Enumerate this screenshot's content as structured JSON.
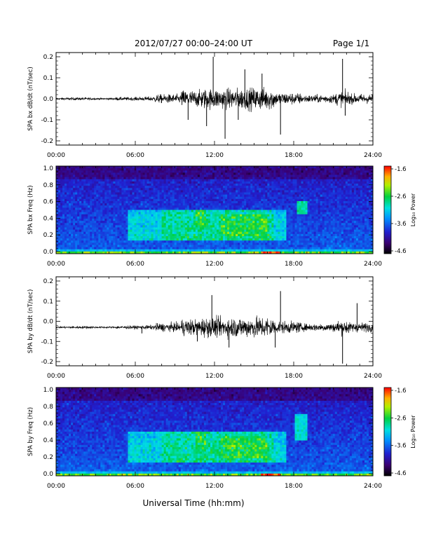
{
  "header": {
    "title": "2012/07/27  00:00–24:00 UT",
    "page": "Page 1/1"
  },
  "footer": {
    "xlabel": "Universal Time (hh:mm)"
  },
  "colorbar": {
    "label": "Log₁₀ Power",
    "ticks": [
      "-1.6",
      "-2.6",
      "-3.6",
      "-4.6"
    ]
  },
  "colors": {
    "trace": "#000000",
    "background": "#ffffff"
  },
  "chart_data": [
    {
      "type": "line",
      "ylabel": "SPA bx dB/dt (nT/sec)",
      "x_ticks": [
        "00:00",
        "06:00",
        "12:00",
        "18:00",
        "24:00"
      ],
      "y_ticks": [
        "0.2",
        "0.1",
        "0.0",
        "-0.1",
        "-0.2"
      ],
      "xlim": [
        0,
        24
      ],
      "ylim": [
        -0.2,
        0.2
      ],
      "spikes": [
        {
          "x": 11.9,
          "y": 0.2
        },
        {
          "x": 12.8,
          "y": -0.19
        },
        {
          "x": 11.4,
          "y": -0.13
        },
        {
          "x": 15.6,
          "y": 0.12
        },
        {
          "x": 17.0,
          "y": -0.17
        },
        {
          "x": 21.7,
          "y": 0.19
        },
        {
          "x": 21.9,
          "y": -0.08
        },
        {
          "x": 14.3,
          "y": 0.14
        },
        {
          "x": 10.0,
          "y": -0.1
        },
        {
          "x": 13.8,
          "y": -0.1
        }
      ]
    },
    {
      "type": "heatmap",
      "ylabel": "SPA bx Freq (Hz)",
      "x_ticks": [
        "00:00",
        "06:00",
        "12:00",
        "18:00",
        "24:00"
      ],
      "y_ticks": [
        "1.0",
        "0.8",
        "0.6",
        "0.4",
        "0.2",
        "0.0"
      ],
      "xlim": [
        0,
        24
      ],
      "ylim": [
        0,
        1
      ],
      "zlim": [
        -4.6,
        -1.6
      ],
      "zlabel": "Log₁₀ Power"
    },
    {
      "type": "line",
      "ylabel": "SPA by dB/dt (nT/sec)",
      "x_ticks": [
        "00:00",
        "06:00",
        "12:00",
        "18:00",
        "24:00"
      ],
      "y_ticks": [
        "0.2",
        "0.1",
        "0.0",
        "-0.1",
        "-0.2"
      ],
      "xlim": [
        0,
        24
      ],
      "ylim": [
        -0.2,
        0.2
      ],
      "spikes": [
        {
          "x": 11.8,
          "y": 0.13
        },
        {
          "x": 17.0,
          "y": 0.15
        },
        {
          "x": 21.7,
          "y": -0.21
        },
        {
          "x": 22.8,
          "y": 0.09
        },
        {
          "x": 13.1,
          "y": -0.13
        },
        {
          "x": 16.6,
          "y": -0.13
        },
        {
          "x": 6.5,
          "y": -0.06
        },
        {
          "x": 10.7,
          "y": -0.1
        }
      ]
    },
    {
      "type": "heatmap",
      "ylabel": "SPA by Freq (Hz)",
      "x_ticks": [
        "00:00",
        "06:00",
        "12:00",
        "18:00",
        "24:00"
      ],
      "y_ticks": [
        "1.0",
        "0.8",
        "0.6",
        "0.4",
        "0.2",
        "0.0"
      ],
      "xlim": [
        0,
        24
      ],
      "ylim": [
        0,
        1
      ],
      "zlim": [
        -4.6,
        -1.6
      ],
      "zlabel": "Log₁₀ Power"
    }
  ]
}
